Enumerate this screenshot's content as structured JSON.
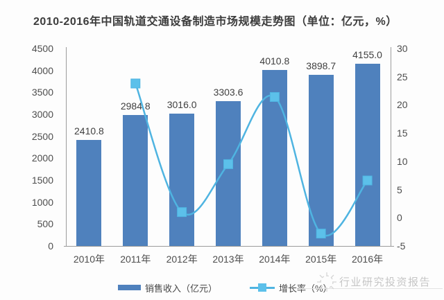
{
  "title": "2010-2016年中国轨道交通设备制造市场规模走势图（单位：亿元，%）",
  "legend": {
    "bar_label": "销售收入（亿元）",
    "line_label": "增长率（%）"
  },
  "watermark": {
    "text": "行业研究投资报告",
    "logo": "snowflake-logo"
  },
  "colors": {
    "bar": "#4f81bd",
    "line": "#4fb4e1",
    "marker": "#5cc0ea",
    "axis": "#9b9b9b",
    "text": "#3f3f3f",
    "watermark": "#c8c8c8"
  },
  "chart_data": {
    "type": "combo",
    "categories": [
      "2010年",
      "2011年",
      "2012年",
      "2013年",
      "2014年",
      "2015年",
      "2016年"
    ],
    "series": [
      {
        "name": "销售收入（亿元）",
        "type": "bar",
        "axis": "left",
        "values": [
          2410.8,
          2984.8,
          3016.0,
          3303.6,
          4010.8,
          3898.7,
          4155.0
        ],
        "labels": [
          "2410.8",
          "2984.8",
          "3016.0",
          "3303.6",
          "4010.8",
          "3898.7",
          "4155.0"
        ]
      },
      {
        "name": "增长率（%）",
        "type": "line",
        "axis": "right",
        "values": [
          null,
          23.8,
          1.0,
          9.5,
          21.4,
          -2.8,
          6.6
        ]
      }
    ],
    "left_axis": {
      "min": 0,
      "max": 4500,
      "step": 500,
      "ticks": [
        "4500",
        "4000",
        "3500",
        "3000",
        "2500",
        "2000",
        "1500",
        "1000",
        "500",
        "0"
      ]
    },
    "right_axis": {
      "min": -5,
      "max": 30,
      "step": 5,
      "ticks": [
        "30",
        "25",
        "20",
        "15",
        "10",
        "5",
        "0",
        "-5"
      ]
    },
    "grid": false,
    "legend_position": "bottom"
  }
}
